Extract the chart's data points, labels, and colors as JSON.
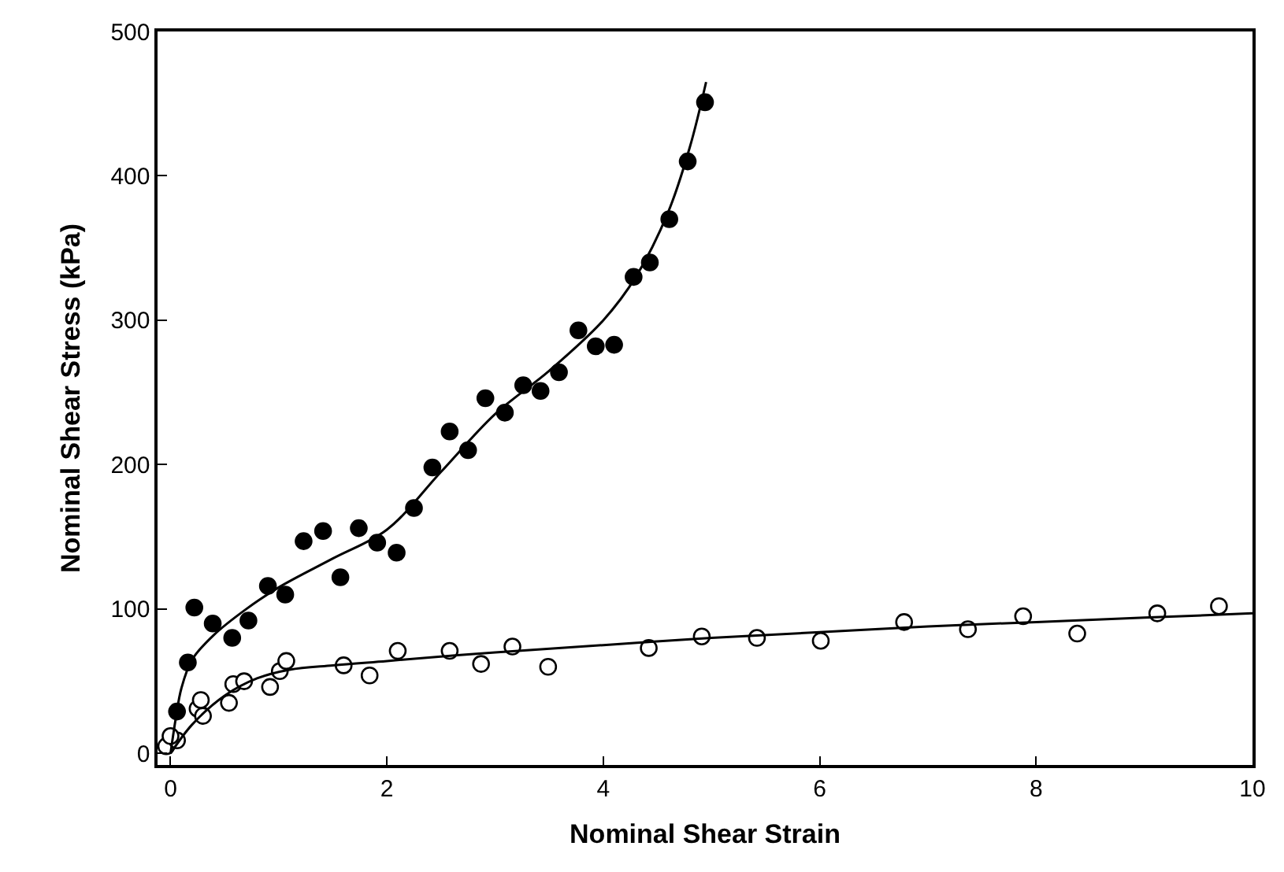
{
  "chart_data": {
    "type": "scatter",
    "xlabel": "Nominal Shear Strain",
    "ylabel": "Nominal Shear Stress (kPa)",
    "xlim": [
      -0.12,
      10
    ],
    "ylim": [
      -8,
      500
    ],
    "xticks": [
      0,
      2,
      4,
      6,
      8,
      10
    ],
    "yticks": [
      0,
      100,
      200,
      300,
      400,
      500
    ],
    "series": [
      {
        "color": "#000000",
        "marker": "circle",
        "x": [
          0.06,
          0.16,
          0.22,
          0.39,
          0.57,
          0.72,
          0.9,
          1.06,
          1.23,
          1.41,
          1.57,
          1.74,
          1.91,
          2.09,
          2.25,
          2.42,
          2.58,
          2.75,
          2.91,
          3.09,
          3.26,
          3.42,
          3.59,
          3.77,
          3.93,
          4.1,
          4.28,
          4.43,
          4.61,
          4.78,
          4.94
        ],
        "values": [
          29,
          63,
          101,
          90,
          80,
          92,
          116,
          110,
          147,
          154,
          122,
          156,
          146,
          139,
          170,
          198,
          223,
          210,
          246,
          236,
          255,
          251,
          264,
          293,
          282,
          283,
          330,
          340,
          370,
          410,
          451
        ]
      },
      {
        "color": "#ffffff",
        "marker": "circle",
        "x": [
          -0.04,
          0.06,
          0,
          0.25,
          0.28,
          0.3,
          0.54,
          0.58,
          0.68,
          0.92,
          1.01,
          1.07,
          1.6,
          1.84,
          2.1,
          2.58,
          2.87,
          3.16,
          3.49,
          4.42,
          4.91,
          5.42,
          6.01,
          6.78,
          7.37,
          7.88,
          8.38,
          9.12,
          9.69
        ],
        "values": [
          5,
          9,
          12,
          31,
          37,
          26,
          35,
          48,
          50,
          46,
          57,
          64,
          61,
          54,
          71,
          71,
          62,
          74,
          60,
          73,
          81,
          80,
          78,
          91,
          86,
          95,
          83,
          97,
          102
        ]
      },
      {
        "type": "line",
        "color": "#000000",
        "line_style": "solid",
        "x": [
          0,
          0.05,
          0.1,
          0.2,
          0.4,
          0.7,
          1,
          1.5,
          2,
          2.5,
          3,
          3.5,
          4,
          4.3,
          4.6,
          4.8,
          4.95
        ],
        "values": [
          0,
          25,
          45,
          65,
          82,
          100,
          115,
          135,
          155,
          195,
          235,
          265,
          300,
          330,
          375,
          420,
          465
        ]
      },
      {
        "type": "line",
        "color": "#000000",
        "line_style": "solid",
        "x": [
          0,
          0.2,
          0.5,
          0.8,
          1.1,
          1.5,
          2,
          3,
          4,
          5,
          6,
          7,
          8,
          9,
          10
        ],
        "values": [
          0,
          20,
          40,
          52,
          58,
          61,
          64,
          70,
          75,
          80,
          84,
          88,
          91,
          94,
          97
        ]
      }
    ]
  }
}
